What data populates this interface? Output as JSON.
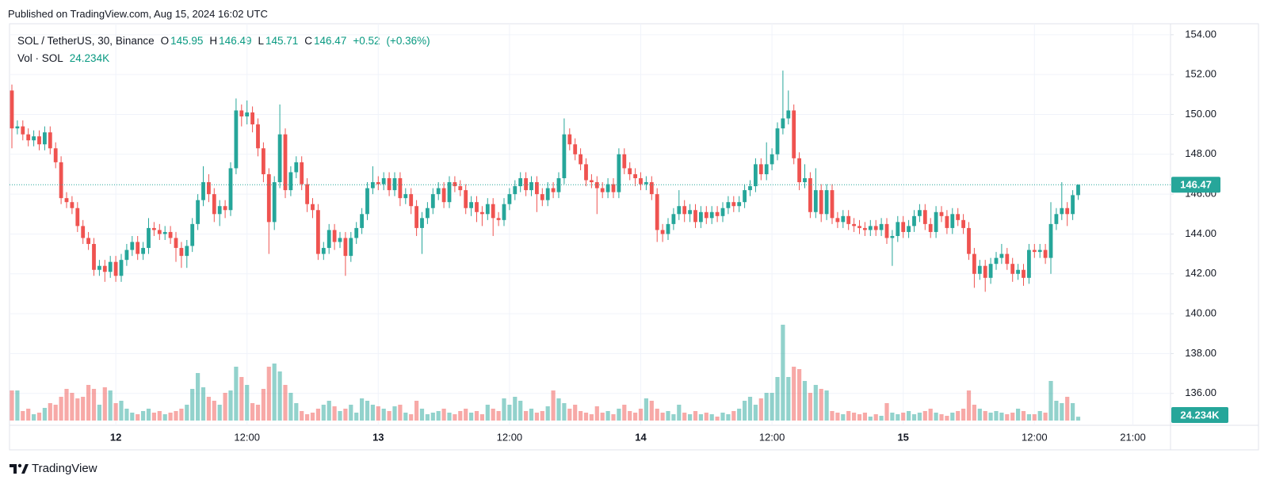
{
  "published": "Published on TradingView.com, Aug 15, 2024 16:02 UTC",
  "brand": "TradingView",
  "chart_data": {
    "type": "candlestick",
    "title": "SOL / TetherUS, 30, Binance",
    "interval": 30,
    "start": "2024-08-11 14:30",
    "ohlc_labels": [
      "O",
      "H",
      "L",
      "C"
    ],
    "change": {
      "value": 0.52,
      "label": "+0.52"
    },
    "change_percent": {
      "value": 0.36,
      "label": "(+0.36%)"
    },
    "volume_title": "Vol · SOL",
    "volume_value_label": "24.234K",
    "up_color": "#26a69a",
    "down_color": "#ef5350",
    "volume_up_color": "#26a69a80",
    "volume_down_color": "#ef535080",
    "grid": true,
    "ylim": [
      134.4,
      154.55
    ],
    "yticks": [
      {
        "value": 136,
        "label": "136.00"
      },
      {
        "value": 138,
        "label": "138.00"
      },
      {
        "value": 140,
        "label": "140.00"
      },
      {
        "value": 142,
        "label": "142.00"
      },
      {
        "value": 144,
        "label": "144.00"
      },
      {
        "value": 146,
        "label": "146.00"
      },
      {
        "value": 148,
        "label": "148.00"
      },
      {
        "value": 150,
        "label": "150.00"
      },
      {
        "value": 152,
        "label": "152.00"
      },
      {
        "value": 154,
        "label": "154.00"
      }
    ],
    "xticks": [
      {
        "value": "2024-08-12 00:00",
        "label": "12"
      },
      {
        "value": "2024-08-12 12:00",
        "label": "12:00"
      },
      {
        "value": "2024-08-13 00:00",
        "label": "13"
      },
      {
        "value": "2024-08-13 12:00",
        "label": "12:00"
      },
      {
        "value": "2024-08-14 00:00",
        "label": "14"
      },
      {
        "value": "2024-08-14 12:00",
        "label": "12:00"
      },
      {
        "value": "2024-08-15 00:00",
        "label": "15"
      },
      {
        "value": "2024-08-15 12:00",
        "label": "12:00"
      },
      {
        "value": "2024-08-15 21:00",
        "label": "21:00"
      }
    ],
    "open": [
      151.2,
      149.3,
      149.4,
      149.0,
      148.7,
      148.9,
      148.5,
      149.1,
      148.3,
      147.6,
      145.8,
      145.6,
      145.3,
      144.4,
      143.8,
      143.5,
      142.2,
      142.4,
      142.1,
      142.6,
      141.9,
      142.7,
      143.2,
      143.6,
      143.0,
      143.3,
      144.3,
      144.2,
      144.0,
      144.1,
      143.8,
      143.3,
      142.9,
      143.4,
      144.5,
      145.7,
      146.6,
      146.0,
      145.0,
      145.4,
      145.2,
      147.3,
      150.2,
      149.9,
      150.1,
      149.5,
      148.3,
      147.0,
      144.6,
      146.6,
      149.0,
      146.2,
      147.1,
      147.6,
      146.5,
      145.5,
      145.2,
      143.0,
      143.3,
      144.2,
      143.6,
      143.8,
      142.9,
      143.8,
      144.3,
      145.0,
      146.3,
      146.6,
      146.5,
      146.8,
      146.2,
      146.8,
      145.8,
      146.0,
      145.4,
      144.3,
      144.8,
      145.3,
      146.0,
      146.3,
      145.6,
      146.6,
      146.4,
      146.2,
      145.3,
      145.6,
      145.1,
      145.0,
      145.5,
      144.8,
      144.7,
      145.5,
      146.0,
      146.4,
      146.8,
      146.2,
      146.6,
      146.0,
      145.7,
      146.3,
      146.1,
      146.8,
      149.0,
      148.5,
      148.0,
      147.5,
      146.7,
      146.6,
      146.3,
      146.1,
      146.5,
      146.1,
      148.0,
      147.3,
      147.0,
      146.8,
      146.5,
      146.6,
      146.0,
      144.2,
      144.0,
      144.5,
      145.0,
      145.4,
      145.0,
      145.2,
      144.6,
      145.1,
      144.8,
      145.1,
      144.9,
      145.3,
      145.6,
      145.4,
      145.6,
      146.2,
      146.4,
      147.5,
      147.0,
      147.5,
      148.0,
      149.3,
      149.8,
      150.2,
      147.8,
      146.6,
      146.8,
      145.1,
      146.2,
      145.0,
      146.2,
      144.8,
      144.6,
      144.9,
      144.5,
      144.4,
      144.3,
      144.2,
      144.4,
      144.2,
      144.5,
      143.8,
      143.9,
      144.6,
      144.1,
      144.4,
      144.9,
      145.2,
      144.5,
      144.1,
      145.1,
      144.9,
      144.3,
      145.0,
      144.7,
      144.3,
      143.0,
      142.0,
      142.4,
      141.8,
      142.5,
      142.8,
      143.0,
      142.5,
      142.0,
      142.2,
      141.8,
      143.2,
      143.1,
      143.2,
      142.8,
      144.5,
      145.0,
      145.3,
      145.0,
      145.95
    ],
    "high": [
      151.5,
      149.7,
      149.7,
      149.3,
      149.2,
      149.2,
      149.4,
      149.4,
      148.6,
      147.9,
      146.1,
      145.9,
      145.6,
      144.7,
      144.1,
      143.8,
      142.7,
      142.7,
      142.9,
      142.9,
      143.0,
      143.5,
      143.9,
      143.9,
      143.6,
      144.8,
      144.6,
      144.5,
      144.4,
      144.4,
      144.1,
      143.6,
      143.7,
      144.8,
      146.0,
      147.4,
      147.0,
      146.3,
      145.7,
      145.7,
      147.6,
      150.8,
      150.5,
      150.7,
      150.4,
      149.8,
      148.6,
      147.3,
      146.9,
      150.5,
      149.3,
      147.4,
      147.9,
      147.9,
      146.8,
      145.8,
      145.5,
      143.6,
      144.5,
      144.5,
      144.1,
      144.1,
      144.1,
      144.6,
      145.3,
      146.6,
      147.4,
      146.9,
      147.1,
      147.1,
      147.1,
      147.1,
      146.3,
      146.3,
      145.7,
      145.1,
      145.6,
      146.3,
      146.6,
      146.6,
      146.9,
      146.9,
      146.7,
      146.5,
      145.9,
      145.9,
      145.4,
      145.8,
      145.8,
      145.1,
      145.8,
      146.3,
      146.7,
      147.1,
      147.1,
      146.9,
      146.9,
      146.3,
      146.6,
      146.6,
      147.1,
      149.8,
      149.3,
      148.8,
      148.3,
      147.8,
      147.0,
      146.9,
      146.6,
      146.8,
      146.8,
      148.3,
      148.3,
      147.6,
      147.3,
      147.1,
      146.9,
      146.9,
      146.3,
      144.5,
      144.8,
      145.3,
      146.2,
      145.7,
      145.5,
      145.5,
      145.4,
      145.4,
      145.4,
      145.4,
      145.6,
      145.9,
      145.9,
      145.9,
      146.5,
      146.7,
      147.8,
      147.8,
      148.6,
      148.3,
      149.6,
      152.2,
      151.2,
      150.5,
      148.1,
      147.5,
      147.1,
      147.3,
      146.5,
      146.5,
      146.5,
      145.1,
      145.2,
      145.2,
      144.8,
      144.7,
      144.6,
      144.7,
      144.7,
      144.8,
      144.8,
      144.2,
      144.9,
      144.9,
      144.7,
      145.2,
      145.5,
      145.5,
      144.8,
      145.4,
      145.4,
      145.2,
      145.3,
      145.3,
      145.0,
      144.6,
      143.3,
      142.7,
      142.7,
      142.8,
      143.1,
      143.5,
      143.3,
      142.8,
      142.5,
      142.5,
      143.5,
      143.5,
      143.5,
      143.5,
      145.6,
      145.3,
      146.6,
      145.6,
      146.2,
      146.49
    ],
    "low": [
      148.3,
      149.0,
      148.7,
      148.4,
      148.4,
      148.2,
      148.2,
      148.0,
      147.3,
      145.5,
      145.3,
      145.0,
      144.1,
      143.5,
      143.2,
      141.9,
      141.9,
      141.6,
      141.8,
      141.6,
      141.6,
      142.4,
      142.9,
      142.7,
      142.7,
      143.0,
      143.9,
      143.7,
      143.7,
      143.5,
      142.6,
      142.3,
      142.3,
      143.1,
      144.2,
      145.4,
      145.6,
      144.6,
      144.4,
      144.8,
      144.9,
      147.0,
      149.4,
      149.5,
      149.1,
      147.9,
      146.6,
      143.0,
      144.2,
      146.3,
      145.8,
      145.9,
      146.8,
      146.2,
      145.1,
      144.8,
      142.7,
      142.7,
      143.0,
      143.2,
      143.3,
      141.9,
      142.6,
      143.5,
      144.0,
      144.7,
      146.0,
      146.2,
      146.2,
      145.9,
      145.9,
      145.4,
      145.5,
      145.0,
      143.9,
      143.0,
      144.5,
      145.0,
      145.7,
      145.3,
      145.3,
      146.1,
      145.9,
      145.0,
      144.9,
      144.6,
      144.4,
      144.7,
      143.9,
      144.4,
      144.4,
      145.2,
      145.7,
      146.1,
      145.9,
      145.9,
      145.1,
      145.4,
      145.4,
      145.8,
      145.8,
      146.5,
      148.2,
      147.7,
      147.2,
      146.4,
      146.3,
      145.0,
      145.8,
      145.8,
      145.8,
      145.8,
      147.0,
      146.7,
      146.4,
      146.2,
      146.2,
      145.7,
      143.6,
      143.6,
      143.7,
      144.2,
      144.7,
      144.6,
      144.6,
      144.3,
      144.3,
      144.5,
      144.5,
      144.6,
      144.6,
      145.0,
      145.1,
      145.1,
      145.3,
      145.9,
      146.1,
      146.7,
      146.7,
      147.2,
      147.7,
      149.0,
      149.5,
      147.5,
      146.2,
      146.3,
      144.8,
      144.8,
      144.6,
      144.7,
      144.5,
      144.3,
      144.3,
      144.2,
      144.1,
      144.0,
      143.9,
      143.9,
      143.9,
      143.9,
      143.5,
      142.4,
      143.6,
      143.8,
      143.8,
      144.1,
      144.6,
      144.2,
      143.8,
      143.8,
      144.6,
      144.0,
      144.0,
      144.4,
      144.0,
      142.7,
      141.3,
      141.7,
      141.1,
      141.5,
      142.2,
      142.5,
      142.2,
      141.6,
      141.7,
      141.4,
      141.5,
      142.8,
      142.8,
      142.5,
      142.0,
      144.2,
      144.7,
      144.4,
      144.7,
      145.71
    ],
    "close": [
      149.3,
      149.4,
      149.0,
      148.7,
      148.9,
      148.5,
      149.1,
      148.3,
      147.6,
      145.8,
      145.6,
      145.3,
      144.4,
      143.8,
      143.5,
      142.2,
      142.4,
      142.1,
      142.6,
      141.9,
      142.7,
      143.2,
      143.6,
      143.0,
      143.3,
      144.3,
      144.2,
      144.0,
      144.1,
      143.8,
      143.3,
      142.9,
      143.4,
      144.5,
      145.7,
      146.6,
      146.0,
      145.0,
      145.4,
      145.2,
      147.3,
      150.2,
      149.9,
      150.1,
      149.5,
      148.3,
      147.0,
      144.6,
      146.6,
      149.0,
      146.2,
      147.1,
      147.6,
      146.5,
      145.5,
      145.2,
      143.0,
      143.3,
      144.2,
      143.6,
      143.8,
      142.9,
      143.8,
      144.3,
      145.0,
      146.3,
      146.6,
      146.5,
      146.8,
      146.2,
      146.8,
      145.8,
      146.0,
      145.4,
      144.3,
      144.8,
      145.3,
      146.0,
      146.3,
      145.6,
      146.6,
      146.4,
      146.2,
      145.3,
      145.6,
      145.1,
      145.0,
      145.5,
      144.8,
      144.7,
      145.5,
      146.0,
      146.4,
      146.8,
      146.2,
      146.6,
      146.0,
      145.7,
      146.3,
      146.1,
      146.8,
      149.0,
      148.5,
      148.0,
      147.5,
      146.7,
      146.6,
      146.3,
      146.1,
      146.5,
      146.1,
      148.0,
      147.3,
      147.0,
      146.8,
      146.5,
      146.6,
      146.0,
      144.2,
      144.0,
      144.5,
      145.0,
      145.4,
      145.0,
      145.2,
      144.6,
      145.1,
      144.8,
      145.1,
      144.9,
      145.3,
      145.6,
      145.4,
      145.6,
      146.2,
      146.4,
      147.5,
      147.0,
      147.5,
      148.0,
      149.3,
      149.8,
      150.2,
      147.8,
      146.6,
      146.8,
      145.1,
      146.2,
      145.0,
      146.2,
      144.8,
      144.6,
      144.9,
      144.5,
      144.4,
      144.3,
      144.2,
      144.4,
      144.2,
      144.5,
      143.8,
      143.9,
      144.6,
      144.1,
      144.4,
      144.9,
      145.2,
      144.5,
      144.1,
      145.1,
      144.9,
      144.3,
      145.0,
      144.7,
      144.3,
      143.0,
      142.0,
      142.4,
      141.8,
      142.5,
      142.8,
      143.0,
      142.5,
      142.0,
      142.2,
      141.8,
      143.2,
      143.1,
      143.2,
      142.8,
      144.5,
      145.0,
      145.3,
      145.0,
      145.95,
      146.47
    ],
    "volume": [
      190000,
      190000,
      60000,
      75000,
      40000,
      50000,
      80000,
      110000,
      100000,
      150000,
      200000,
      175000,
      140000,
      150000,
      225000,
      200000,
      100000,
      210000,
      190000,
      110000,
      125000,
      75000,
      50000,
      40000,
      60000,
      75000,
      50000,
      60000,
      40000,
      50000,
      60000,
      75000,
      100000,
      200000,
      300000,
      210000,
      150000,
      125000,
      100000,
      175000,
      190000,
      340000,
      275000,
      225000,
      110000,
      100000,
      200000,
      340000,
      360000,
      310000,
      225000,
      175000,
      110000,
      60000,
      40000,
      50000,
      75000,
      100000,
      125000,
      90000,
      60000,
      75000,
      100000,
      50000,
      140000,
      125000,
      100000,
      90000,
      75000,
      60000,
      90000,
      100000,
      50000,
      40000,
      125000,
      75000,
      40000,
      50000,
      60000,
      75000,
      50000,
      40000,
      60000,
      75000,
      50000,
      60000,
      40000,
      100000,
      75000,
      60000,
      140000,
      100000,
      150000,
      125000,
      60000,
      75000,
      50000,
      60000,
      90000,
      190000,
      140000,
      110000,
      75000,
      100000,
      60000,
      50000,
      40000,
      90000,
      50000,
      60000,
      40000,
      75000,
      100000,
      60000,
      50000,
      75000,
      140000,
      125000,
      75000,
      50000,
      60000,
      40000,
      100000,
      50000,
      40000,
      60000,
      40000,
      50000,
      40000,
      25000,
      50000,
      40000,
      60000,
      75000,
      125000,
      150000,
      100000,
      140000,
      175000,
      175000,
      275000,
      605000,
      275000,
      340000,
      325000,
      250000,
      175000,
      225000,
      200000,
      190000,
      60000,
      50000,
      40000,
      60000,
      50000,
      40000,
      50000,
      25000,
      40000,
      30000,
      110000,
      50000,
      40000,
      50000,
      60000,
      40000,
      50000,
      60000,
      75000,
      50000,
      40000,
      30000,
      50000,
      60000,
      75000,
      190000,
      100000,
      75000,
      60000,
      50000,
      60000,
      50000,
      40000,
      50000,
      75000,
      60000,
      40000,
      40000,
      60000,
      50000,
      250000,
      125000,
      110000,
      150000,
      110000,
      24234
    ]
  }
}
